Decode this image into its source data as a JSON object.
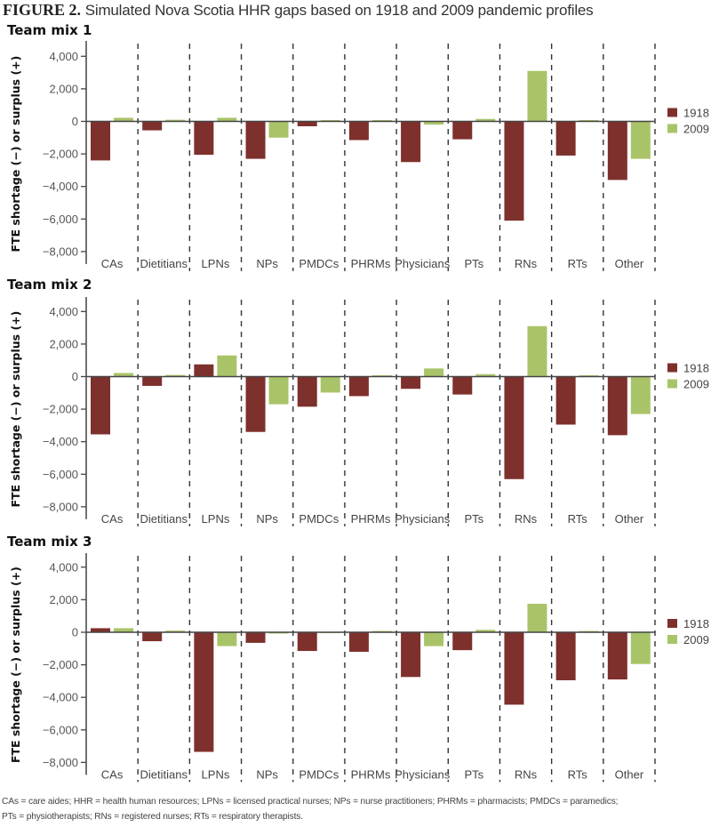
{
  "figure": {
    "label": "FIGURE 2.",
    "title": "Simulated Nova Scotia HHR gaps based on 1918 and 2009 pandemic profiles",
    "footnote_line1": "CAs = care aides; HHR = health human resources; LPNs = licensed practical nurses; NPs = nurse practitioners; PHRMs = pharmacists; PMDCs = paramedics;",
    "footnote_line2": "PTs = physiotherapists; RNs = registered nurses; RTs = respiratory therapists."
  },
  "colors": {
    "1918": "#7e302c",
    "2009": "#a9c468",
    "axis": "#444444",
    "divider": "#333333"
  },
  "chart_data": [
    {
      "type": "bar",
      "title": "Team mix 1",
      "xlabel": "",
      "ylabel": "FTE shortage (−) or surplus (+)",
      "ylim": [
        -8000,
        4000
      ],
      "yticks": [
        4000,
        2000,
        0,
        -2000,
        -4000,
        -6000,
        -8000
      ],
      "ytick_labels": [
        "4,000",
        "2,000",
        "0",
        "−2,000",
        "−4,000",
        "−6,000",
        "−8,000"
      ],
      "grid": false,
      "legend": "right",
      "categories": [
        "CAs",
        "Dietitians",
        "LPNs",
        "NPs",
        "PMDCs",
        "PHRMs",
        "Physicians",
        "PTs",
        "RNs",
        "RTs",
        "Other"
      ],
      "series": [
        {
          "name": "1918",
          "values": [
            -2400,
            -550,
            -2050,
            -2300,
            -300,
            -1150,
            -2500,
            -1100,
            -6100,
            -2100,
            -3600
          ]
        },
        {
          "name": "2009",
          "values": [
            220,
            100,
            220,
            -1000,
            80,
            80,
            -200,
            150,
            3100,
            80,
            -2300
          ]
        }
      ]
    },
    {
      "type": "bar",
      "title": "Team mix 2",
      "xlabel": "",
      "ylabel": "FTE shortage (−) or surplus (+)",
      "ylim": [
        -8000,
        4000
      ],
      "yticks": [
        4000,
        2000,
        0,
        -2000,
        -4000,
        -6000,
        -8000
      ],
      "ytick_labels": [
        "4,000",
        "2,000",
        "0",
        "−2,000",
        "−4,000",
        "−6,000",
        "−8,000"
      ],
      "grid": false,
      "legend": "right",
      "categories": [
        "CAs",
        "Dietitians",
        "LPNs",
        "NPs",
        "PMDCs",
        "PHRMs",
        "Physicians",
        "PTs",
        "RNs",
        "RTs",
        "Other"
      ],
      "series": [
        {
          "name": "1918",
          "values": [
            -3550,
            -570,
            750,
            -3400,
            -1850,
            -1200,
            -750,
            -1100,
            -6300,
            -2950,
            -3600
          ]
        },
        {
          "name": "2009",
          "values": [
            220,
            100,
            1300,
            -1700,
            -980,
            80,
            500,
            150,
            3100,
            80,
            -2300
          ]
        }
      ]
    },
    {
      "type": "bar",
      "title": "Team mix 3",
      "xlabel": "",
      "ylabel": "FTE shortage (−) or surplus (+)",
      "ylim": [
        -8000,
        4000
      ],
      "yticks": [
        4000,
        2000,
        0,
        -2000,
        -4000,
        -6000,
        -8000
      ],
      "ytick_labels": [
        "4,000",
        "2,000",
        "0",
        "−2,000",
        "−4,000",
        "−6,000",
        "−8,000"
      ],
      "grid": false,
      "legend": "right",
      "categories": [
        "CAs",
        "Dietitians",
        "LPNs",
        "NPs",
        "PMDCs",
        "PHRMs",
        "Physicians",
        "PTs",
        "RNs",
        "RTs",
        "Other"
      ],
      "series": [
        {
          "name": "1918",
          "values": [
            250,
            -550,
            -7350,
            -650,
            -1150,
            -1200,
            -2750,
            -1100,
            -4450,
            -2950,
            -2900
          ]
        },
        {
          "name": "2009",
          "values": [
            250,
            100,
            -850,
            -30,
            30,
            80,
            -850,
            150,
            1750,
            80,
            -1950
          ]
        }
      ]
    }
  ]
}
